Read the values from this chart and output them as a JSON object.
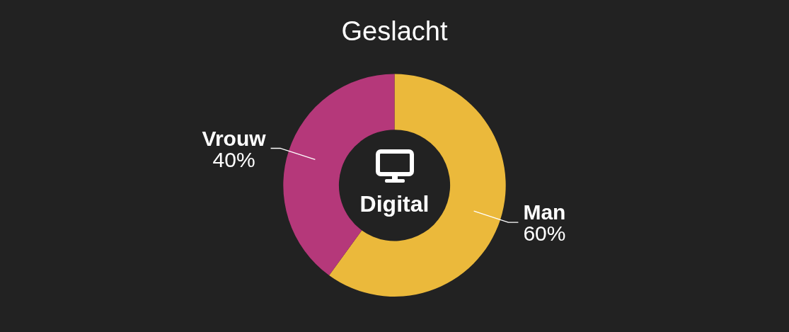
{
  "chart_data": {
    "type": "donut",
    "title": "Geslacht",
    "categories": [
      "Man",
      "Vrouw"
    ],
    "values": [
      60,
      40
    ],
    "colors": [
      "#ebb93b",
      "#b5387a"
    ],
    "value_labels": [
      "60%",
      "40%"
    ],
    "annotations": [
      "Digital"
    ]
  }
}
